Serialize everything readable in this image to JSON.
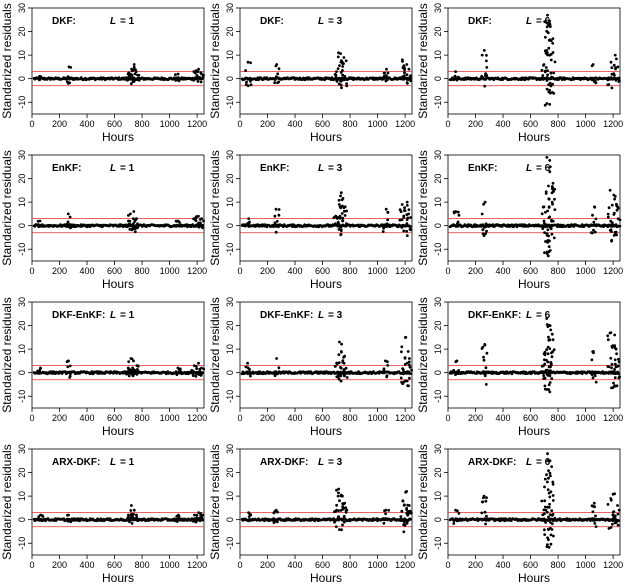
{
  "chart_data": {
    "type": "scatter",
    "layout": "4 rows x 3 columns",
    "xlabel": "Hours",
    "ylabel": "Standarized residuals",
    "xlim": [
      0,
      1250
    ],
    "ylim": [
      -15,
      30
    ],
    "x_ticks": [
      0,
      200,
      400,
      600,
      800,
      1000,
      1200
    ],
    "x_tick_labels": [
      "0",
      "200",
      "400",
      "600",
      "800",
      "1000",
      "1200"
    ],
    "y_ticks": [
      -10,
      0,
      10,
      20,
      30
    ],
    "y_tick_labels": [
      "-10",
      "0",
      "10",
      "20",
      "30"
    ],
    "reference_lines": [
      3,
      -3
    ],
    "reference_line_color": "#e03030",
    "point_color": "#000000",
    "spike_hours": [
      60,
      265,
      700,
      720,
      740,
      760,
      1060,
      1180,
      1210,
      1230
    ],
    "panels": [
      {
        "method": "DKF:",
        "l_label": "L",
        "l_value": "= 1",
        "spike_amplitudes": [
          1,
          5,
          2,
          4,
          6,
          3,
          2,
          3,
          4,
          2
        ]
      },
      {
        "method": "DKF:",
        "l_label": "L",
        "l_value": "= 3",
        "spike_amplitudes": [
          7,
          6,
          3,
          11,
          7,
          9,
          4,
          8,
          6,
          4
        ]
      },
      {
        "method": "DKF:",
        "l_label": "L",
        "l_value": "= 6",
        "spike_amplitudes": [
          3,
          12,
          6,
          27,
          24,
          17,
          6,
          7,
          10,
          5
        ]
      },
      {
        "method": "EnKF:",
        "l_label": "L",
        "l_value": "= 1",
        "spike_amplitudes": [
          2,
          5,
          2,
          5,
          6,
          3,
          2,
          3,
          4,
          3
        ]
      },
      {
        "method": "EnKF:",
        "l_label": "L",
        "l_value": "= 3",
        "spike_amplitudes": [
          3,
          7,
          4,
          9,
          14,
          8,
          7,
          9,
          10,
          5
        ]
      },
      {
        "method": "EnKF:",
        "l_label": "L",
        "l_value": "= 6",
        "spike_amplitudes": [
          6,
          10,
          8,
          29,
          25,
          18,
          8,
          15,
          13,
          8
        ]
      },
      {
        "method": "DKF-EnKF:",
        "l_label": "L",
        "l_value": "= 1",
        "spike_amplitudes": [
          2,
          5,
          2,
          6,
          5,
          3,
          2,
          3,
          4,
          2
        ]
      },
      {
        "method": "DKF-EnKF:",
        "l_label": "L",
        "l_value": "= 3",
        "spike_amplitudes": [
          4,
          6,
          4,
          13,
          9,
          7,
          5,
          11,
          15,
          6
        ]
      },
      {
        "method": "DKF-EnKF:",
        "l_label": "L",
        "l_value": "= 6",
        "spike_amplitudes": [
          5,
          12,
          8,
          23,
          20,
          14,
          9,
          17,
          16,
          8
        ]
      },
      {
        "method": "ARX-DKF:",
        "l_label": "L",
        "l_value": "= 1",
        "spike_amplitudes": [
          2,
          2,
          2,
          6,
          4,
          2,
          2,
          2,
          3,
          2
        ]
      },
      {
        "method": "ARX-DKF:",
        "l_label": "L",
        "l_value": "= 3",
        "spike_amplitudes": [
          3,
          4,
          4,
          13,
          10,
          7,
          4,
          8,
          12,
          6
        ]
      },
      {
        "method": "ARX-DKF:",
        "l_label": "L",
        "l_value": "= 6",
        "spike_amplitudes": [
          4,
          10,
          8,
          28,
          25,
          16,
          7,
          9,
          11,
          6
        ]
      }
    ]
  }
}
